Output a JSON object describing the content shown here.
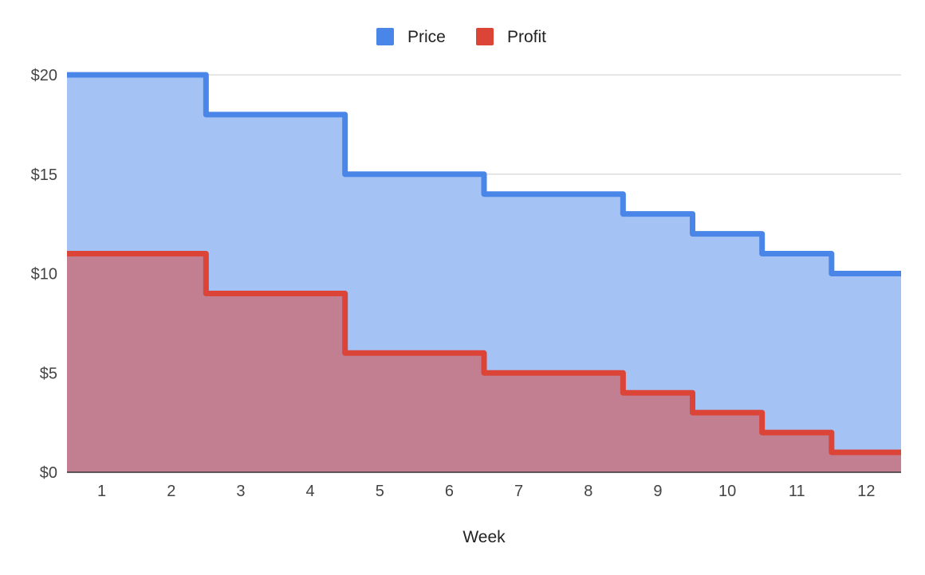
{
  "chart_data": {
    "type": "area",
    "step": true,
    "categories": [
      "1",
      "2",
      "3",
      "4",
      "5",
      "6",
      "7",
      "8",
      "9",
      "10",
      "11",
      "12"
    ],
    "series": [
      {
        "name": "Price",
        "values": [
          20,
          20,
          18,
          18,
          15,
          15,
          14,
          14,
          13,
          12,
          11,
          10
        ],
        "color": "#4a86e8",
        "fill": "#a4c2f4"
      },
      {
        "name": "Profit",
        "values": [
          11,
          11,
          9,
          9,
          6,
          6,
          5,
          5,
          4,
          3,
          2,
          1
        ],
        "color": "#db4437",
        "fill": "#c27f92"
      }
    ],
    "xlabel": "Week",
    "ylabel": "",
    "ylim": [
      0,
      20
    ],
    "yticks": [
      0,
      5,
      10,
      15,
      20
    ],
    "ytick_labels": [
      "$0",
      "$5",
      "$10",
      "$15",
      "$20"
    ],
    "grid": true,
    "legend_position": "top-center"
  }
}
